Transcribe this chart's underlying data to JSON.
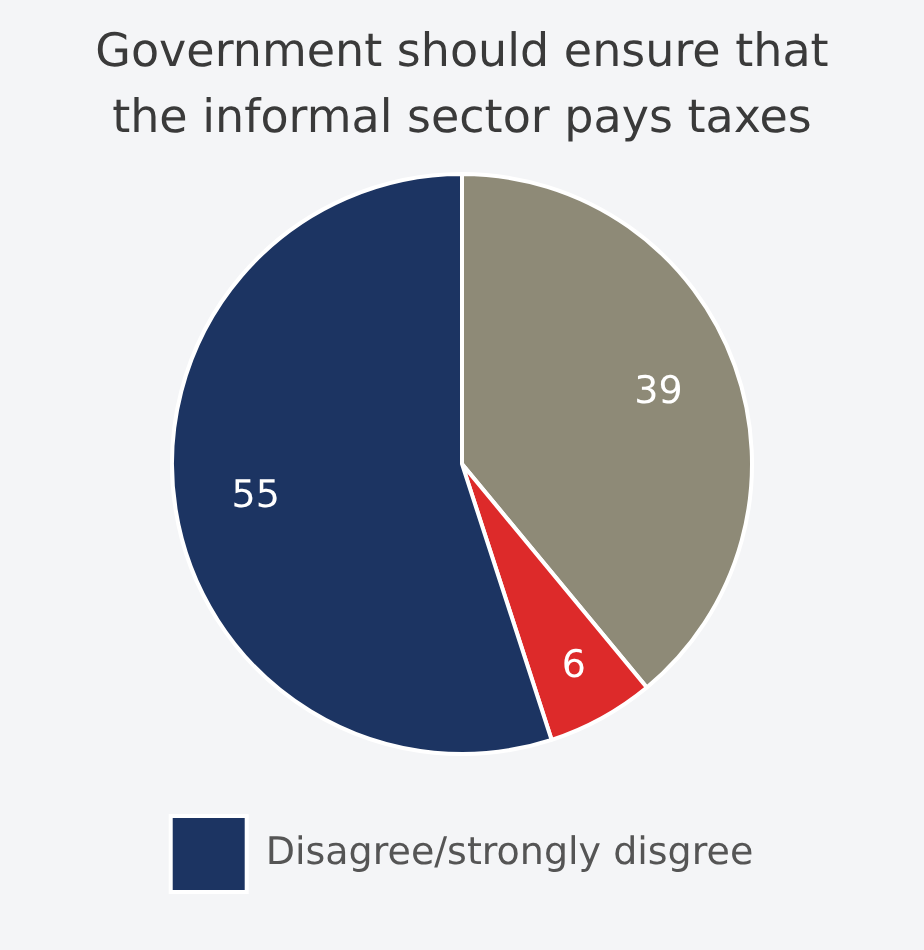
{
  "chart_data": {
    "type": "pie",
    "title": "Government should ensure that the informal sector pays taxes",
    "categories": [
      null,
      null,
      "Disagree/strongly disgree"
    ],
    "values": [
      39,
      6,
      55
    ],
    "colors": [
      "#8e8a77",
      "#dd2a2a",
      "#1c3462"
    ],
    "data_labels": true,
    "legend": "bottom"
  }
}
